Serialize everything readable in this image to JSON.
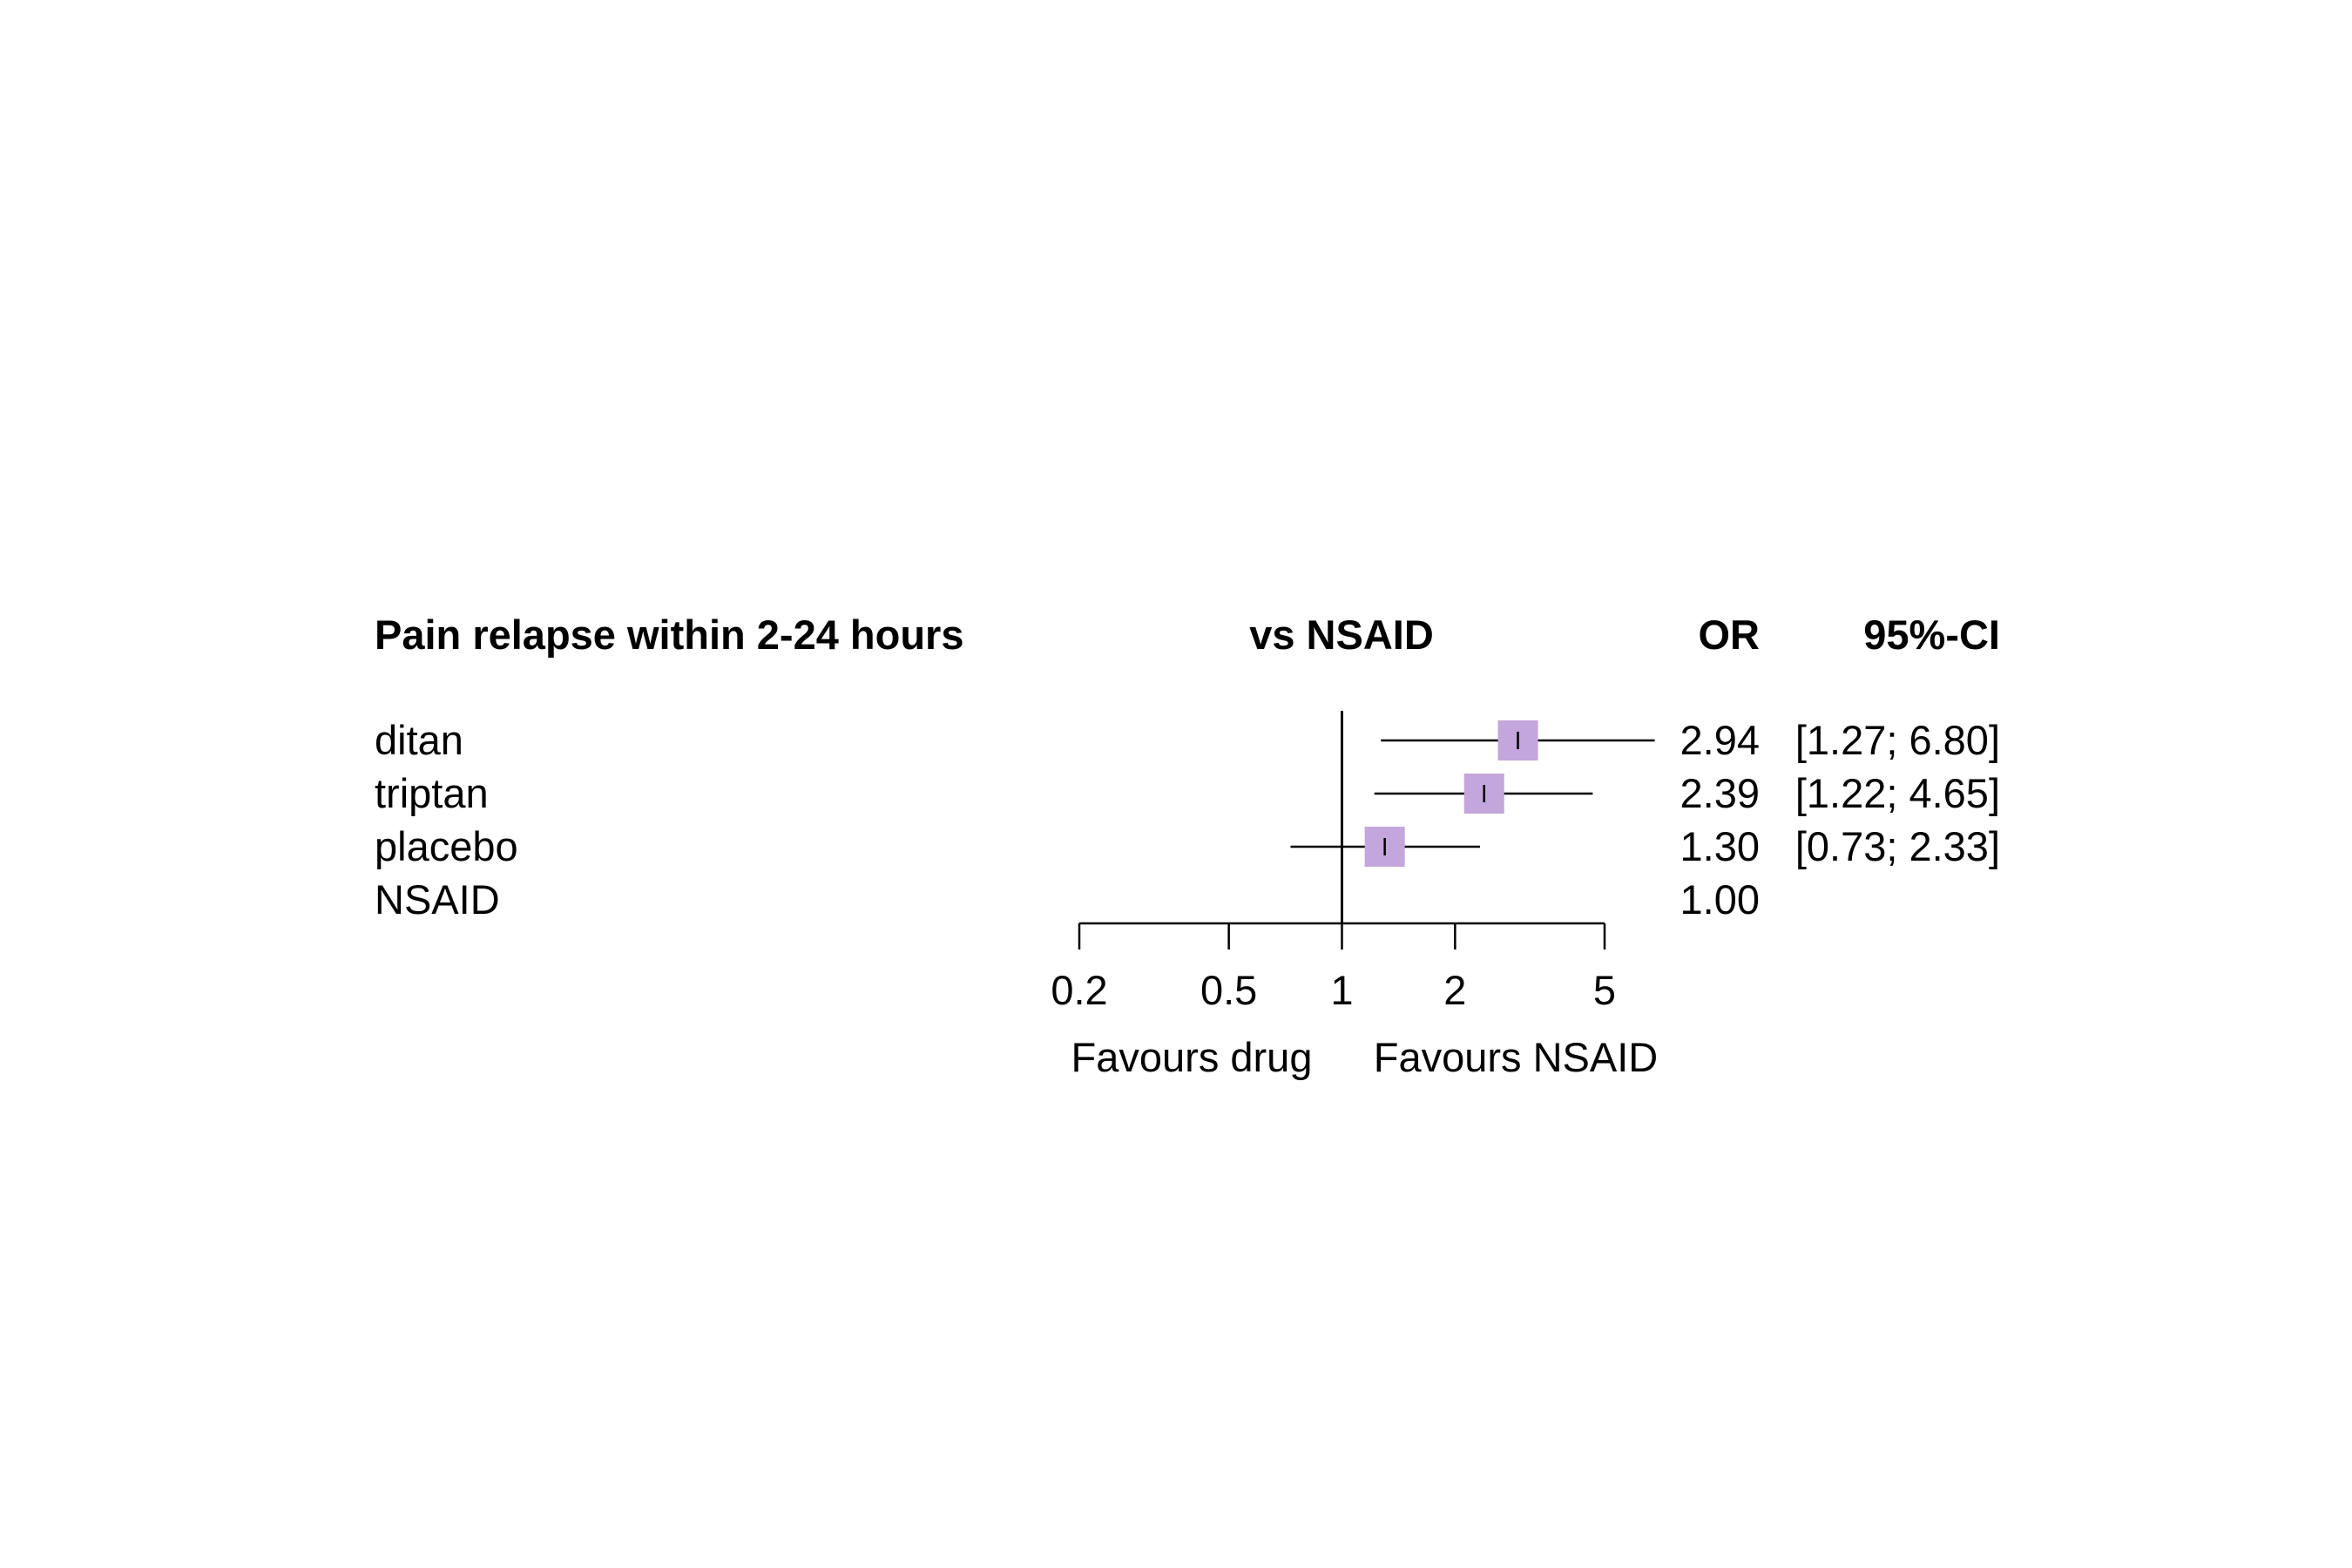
{
  "chart_data": {
    "type": "forest",
    "title": "Pain relapse within 2-24 hours",
    "comparison_header": "vs NSAID",
    "or_header": "OR",
    "ci_header": "95%-CI",
    "scale": "log",
    "reference_value": 1,
    "xlim": [
      0.2,
      5
    ],
    "ticks": [
      0.2,
      0.5,
      1,
      2,
      5
    ],
    "tick_labels": [
      "0.2",
      "0.5",
      "1",
      "2",
      "5"
    ],
    "left_label": "Favours drug",
    "right_label": "Favours NSAID",
    "marker_color": "#c3a6db",
    "rows": [
      {
        "label": "ditan",
        "or": 2.94,
        "lower": 1.27,
        "upper": 6.8,
        "or_text": "2.94",
        "ci_text": "[1.27; 6.80]"
      },
      {
        "label": "triptan",
        "or": 2.39,
        "lower": 1.22,
        "upper": 4.65,
        "or_text": "2.39",
        "ci_text": "[1.22; 4.65]"
      },
      {
        "label": "placebo",
        "or": 1.3,
        "lower": 0.73,
        "upper": 2.33,
        "or_text": "1.30",
        "ci_text": "[0.73; 2.33]"
      },
      {
        "label": "NSAID",
        "or": 1.0,
        "lower": null,
        "upper": null,
        "or_text": "1.00",
        "ci_text": ""
      }
    ]
  }
}
